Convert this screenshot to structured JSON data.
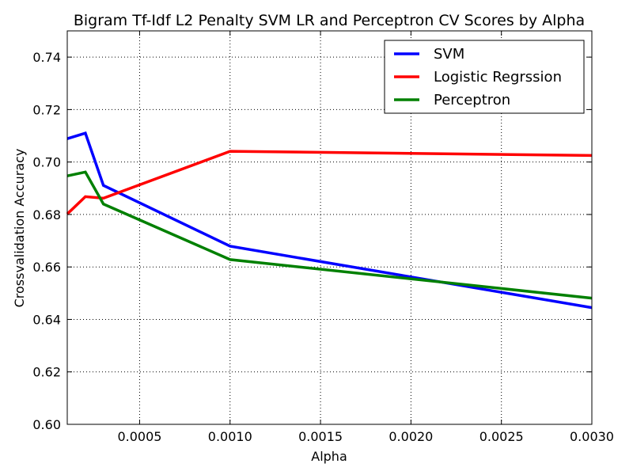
{
  "chart_data": {
    "type": "line",
    "title": "Bigram Tf-Idf L2 Penalty SVM LR and Perceptron CV Scores by Alpha",
    "xlabel": "Alpha",
    "ylabel": "Crossvalidation Accuracy",
    "xlim": [
      0.0001,
      0.003
    ],
    "ylim": [
      0.6,
      0.75
    ],
    "x": [
      0.0001,
      0.0002,
      0.0003,
      0.001,
      0.003
    ],
    "xticks": [
      "0.0005",
      "0.0010",
      "0.0015",
      "0.0020",
      "0.0025",
      "0.0030"
    ],
    "xtick_values": [
      0.0005,
      0.001,
      0.0015,
      0.002,
      0.0025,
      0.003
    ],
    "yticks": [
      "0.60",
      "0.62",
      "0.64",
      "0.66",
      "0.68",
      "0.70",
      "0.72",
      "0.74"
    ],
    "ytick_values": [
      0.6,
      0.62,
      0.64,
      0.66,
      0.68,
      0.7,
      0.72,
      0.74
    ],
    "grid": true,
    "legend_position": "top-right",
    "series": [
      {
        "name": "SVM",
        "color": "#0000ff",
        "values": [
          0.7089,
          0.711,
          0.6911,
          0.6679,
          0.6445
        ]
      },
      {
        "name": "Logistic Regrssion",
        "color": "#ff0000",
        "values": [
          0.6802,
          0.6868,
          0.6862,
          0.7041,
          0.7025
        ]
      },
      {
        "name": "Perceptron",
        "color": "#008000",
        "values": [
          0.6947,
          0.6962,
          0.684,
          0.6628,
          0.6481
        ]
      }
    ]
  }
}
